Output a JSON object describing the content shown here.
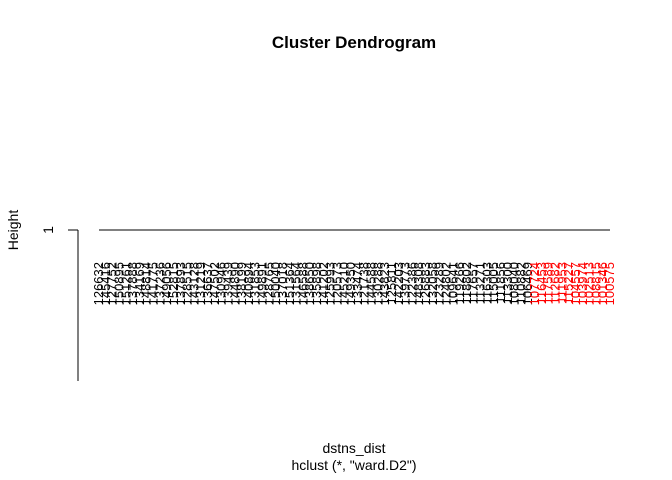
{
  "chart_data": {
    "type": "dendrogram",
    "title": "Cluster Dendrogram",
    "xlabel": "dstns_dist",
    "sublabel": "hclust (*, \"ward.D2\")",
    "ylabel": "Height",
    "y_ticks": [
      1
    ],
    "merge_height": 1,
    "ylim": [
      0,
      1
    ],
    "leaves": [
      {
        "label": "126632",
        "color": "#000000"
      },
      {
        "label": "145416",
        "color": "#000000"
      },
      {
        "label": "127752",
        "color": "#000000"
      },
      {
        "label": "150895",
        "color": "#000000"
      },
      {
        "label": "151261",
        "color": "#000000"
      },
      {
        "label": "137888",
        "color": "#000000"
      },
      {
        "label": "134169",
        "color": "#000000"
      },
      {
        "label": "148814",
        "color": "#000000"
      },
      {
        "label": "141775",
        "color": "#000000"
      },
      {
        "label": "137236",
        "color": "#000000"
      },
      {
        "label": "149056",
        "color": "#000000"
      },
      {
        "label": "152815",
        "color": "#000000"
      },
      {
        "label": "137893",
        "color": "#000000"
      },
      {
        "label": "128515",
        "color": "#000000"
      },
      {
        "label": "143128",
        "color": "#000000"
      },
      {
        "label": "131219",
        "color": "#000000"
      },
      {
        "label": "136637",
        "color": "#000000"
      },
      {
        "label": "147502",
        "color": "#000000"
      },
      {
        "label": "130946",
        "color": "#000000"
      },
      {
        "label": "139439",
        "color": "#000000"
      },
      {
        "label": "144890",
        "color": "#000000"
      },
      {
        "label": "138199",
        "color": "#000000"
      },
      {
        "label": "140894",
        "color": "#000000"
      },
      {
        "label": "131853",
        "color": "#000000"
      },
      {
        "label": "149891",
        "color": "#000000"
      },
      {
        "label": "128765",
        "color": "#000000"
      },
      {
        "label": "150040",
        "color": "#000000"
      },
      {
        "label": "137018",
        "color": "#000000"
      },
      {
        "label": "151364",
        "color": "#000000"
      },
      {
        "label": "131564",
        "color": "#000000"
      },
      {
        "label": "146588",
        "color": "#000000"
      },
      {
        "label": "138650",
        "color": "#000000"
      },
      {
        "label": "135898",
        "color": "#000000"
      },
      {
        "label": "141202",
        "color": "#000000"
      },
      {
        "label": "125993",
        "color": "#000000"
      },
      {
        "label": "120573",
        "color": "#000000"
      },
      {
        "label": "145210",
        "color": "#000000"
      },
      {
        "label": "149350",
        "color": "#000000"
      },
      {
        "label": "133474",
        "color": "#000000"
      },
      {
        "label": "121738",
        "color": "#000000"
      },
      {
        "label": "144588",
        "color": "#000000"
      },
      {
        "label": "130288",
        "color": "#000000"
      },
      {
        "label": "143823",
        "color": "#000000"
      },
      {
        "label": "125811",
        "color": "#000000"
      },
      {
        "label": "142203",
        "color": "#000000"
      },
      {
        "label": "139773",
        "color": "#000000"
      },
      {
        "label": "122386",
        "color": "#000000"
      },
      {
        "label": "148308",
        "color": "#000000"
      },
      {
        "label": "126883",
        "color": "#000000"
      },
      {
        "label": "132058",
        "color": "#000000"
      },
      {
        "label": "123289",
        "color": "#000000"
      },
      {
        "label": "124802",
        "color": "#000000"
      },
      {
        "label": "109641",
        "color": "#000000"
      },
      {
        "label": "119266",
        "color": "#000000"
      },
      {
        "label": "118802",
        "color": "#000000"
      },
      {
        "label": "117657",
        "color": "#000000"
      },
      {
        "label": "113271",
        "color": "#000000"
      },
      {
        "label": "116303",
        "color": "#000000"
      },
      {
        "label": "115005",
        "color": "#000000"
      },
      {
        "label": "111856",
        "color": "#000000"
      },
      {
        "label": "113300",
        "color": "#000000"
      },
      {
        "label": "108040",
        "color": "#000000"
      },
      {
        "label": "110882",
        "color": "#000000"
      },
      {
        "label": "106469",
        "color": "#000000"
      },
      {
        "label": "107724",
        "color": "#ff0000"
      },
      {
        "label": "116453",
        "color": "#ff0000"
      },
      {
        "label": "117589",
        "color": "#ff0000"
      },
      {
        "label": "112682",
        "color": "#ff0000"
      },
      {
        "label": "111953",
        "color": "#ff0000"
      },
      {
        "label": "115227",
        "color": "#ff0000"
      },
      {
        "label": "104557",
        "color": "#ff0000"
      },
      {
        "label": "103974",
        "color": "#ff0000"
      },
      {
        "label": "102513",
        "color": "#ff0000"
      },
      {
        "label": "108815",
        "color": "#ff0000"
      },
      {
        "label": "101346",
        "color": "#ff0000"
      },
      {
        "label": "100575",
        "color": "#ff0000"
      }
    ]
  }
}
